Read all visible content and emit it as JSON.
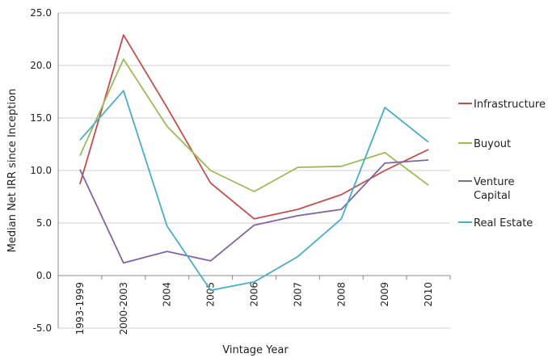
{
  "chart_data": {
    "type": "line",
    "title": "",
    "xlabel": "Vintage Year",
    "ylabel": "Median Net IRR since Inception",
    "categories": [
      "1993-1999",
      "2000-2003",
      "2004",
      "2005",
      "2006",
      "2007",
      "2008",
      "2009",
      "2010"
    ],
    "ylim": [
      -5,
      25
    ],
    "yticks": [
      -5,
      0,
      5,
      10,
      15,
      20,
      25
    ],
    "ytick_labels": [
      "-5.0",
      "0.0",
      "5.0",
      "10.0",
      "15.0",
      "20.0",
      "25.0"
    ],
    "grid": "horizontal",
    "legend_position": "right",
    "series": [
      {
        "name": "Infrastructure",
        "legend_lines": [
          "Infrastructure"
        ],
        "color": "#c0504d",
        "values": [
          8.7,
          22.9,
          16.0,
          8.8,
          5.4,
          6.3,
          7.7,
          10.0,
          12.0
        ]
      },
      {
        "name": "Buyout",
        "legend_lines": [
          "Buyout"
        ],
        "color": "#9bbb59",
        "values": [
          11.4,
          20.6,
          14.2,
          10.0,
          8.0,
          10.3,
          10.4,
          11.7,
          8.6
        ]
      },
      {
        "name": "Venture Capital",
        "legend_lines": [
          "Venture",
          "Capital"
        ],
        "color": "#8064a2",
        "values": [
          10.1,
          1.2,
          2.3,
          1.4,
          4.8,
          5.7,
          6.3,
          10.7,
          11.0
        ]
      },
      {
        "name": "Real Estate",
        "legend_lines": [
          "Real Estate"
        ],
        "color": "#4bacc6",
        "values": [
          12.9,
          17.6,
          4.7,
          -1.4,
          -0.6,
          1.8,
          5.4,
          16.0,
          12.7
        ]
      }
    ]
  }
}
